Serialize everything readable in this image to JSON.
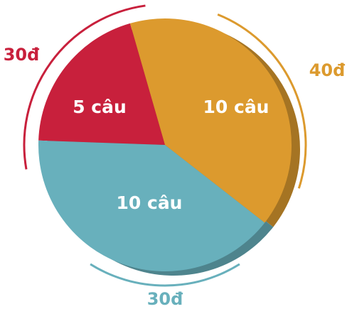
{
  "chart_data": {
    "type": "pie",
    "categories": [
      "5 câu",
      "10 câu",
      "10 câu"
    ],
    "values": [
      5,
      10,
      10
    ],
    "value_labels": [
      "5 câu",
      "10 câu",
      "10 câu"
    ],
    "colors": [
      "#c8203c",
      "#dc9a2e",
      "#68b0bc"
    ],
    "points": [
      30,
      40,
      30
    ],
    "point_labels": [
      "30đ",
      "40đ",
      "30đ"
    ]
  }
}
